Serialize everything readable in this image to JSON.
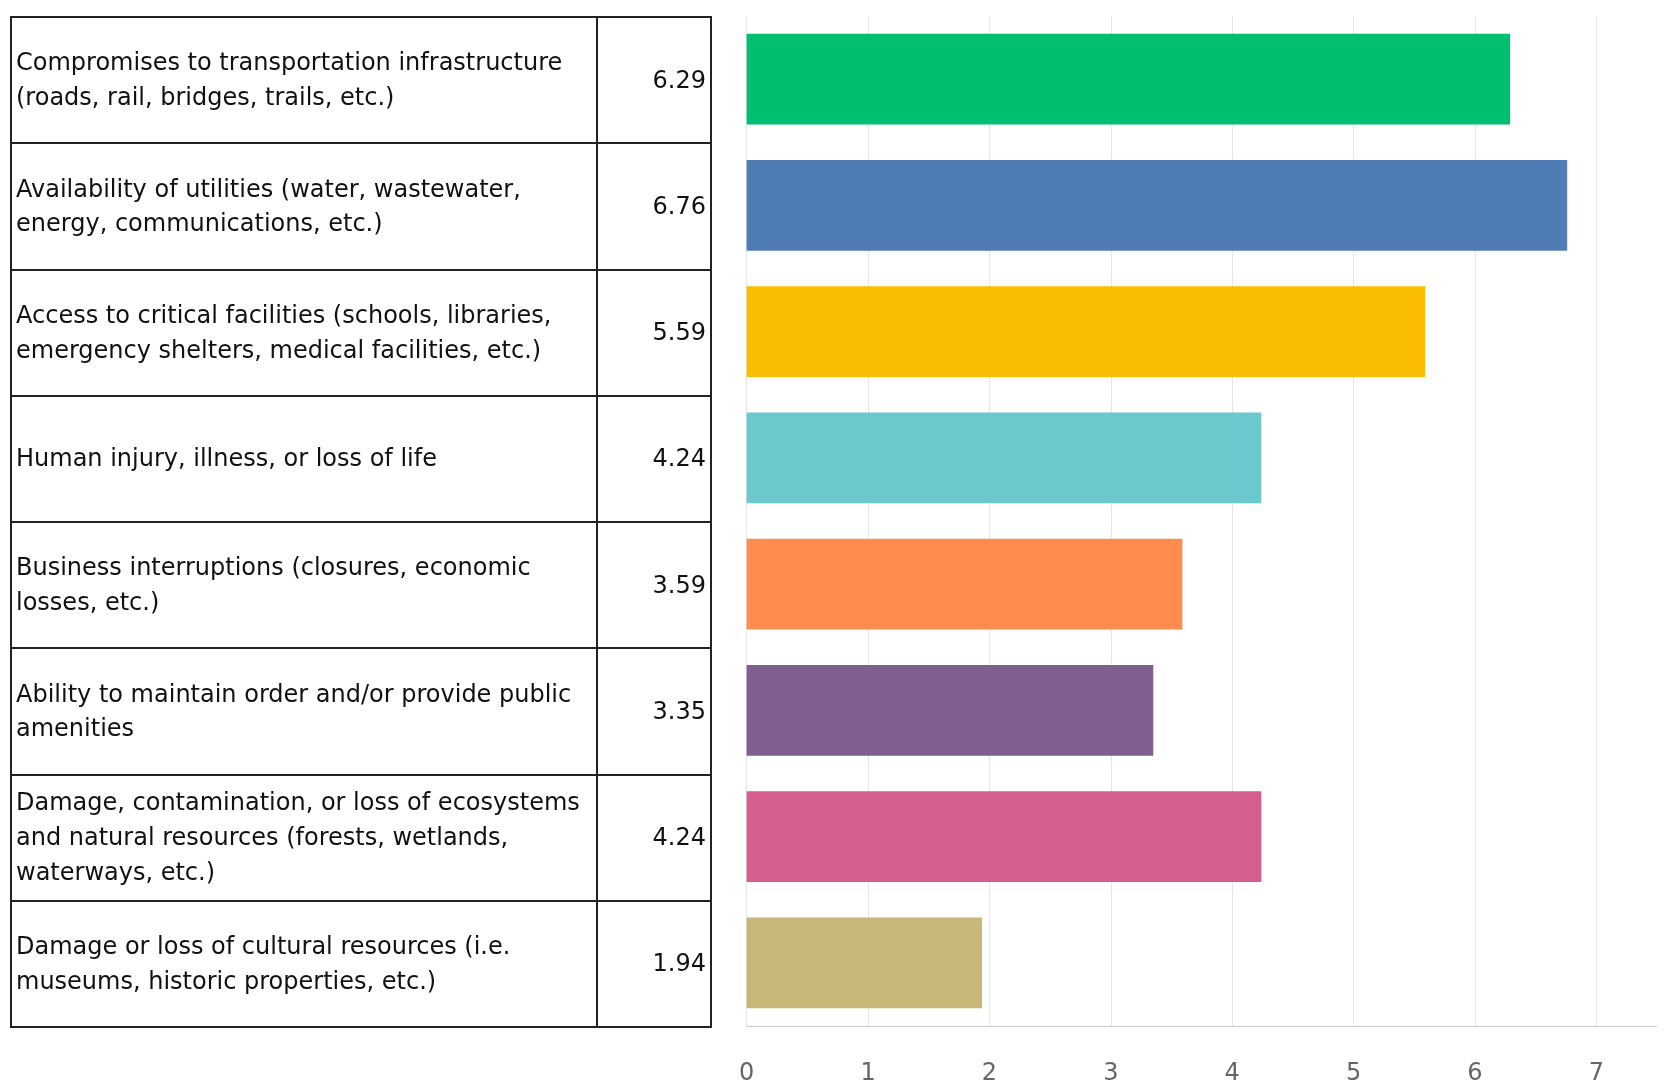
{
  "chart_data": {
    "type": "bar",
    "orientation": "horizontal",
    "categories": [
      "Compromises to transportation infrastructure (roads, rail, bridges, trails, etc.)",
      "Availability of utilities (water, wastewater, energy, communications, etc.)",
      "Access to critical facilities (schools, libraries, emergency shelters, medical facilities, etc.)",
      "Human injury, illness, or loss of life",
      "Business interruptions (closures, economic losses, etc.)",
      "Ability to maintain order and/or provide public amenities",
      "Damage, contamination, or loss of ecosystems and natural resources (forests, wetlands, waterways, etc.)",
      "Damage or loss of cultural resources (i.e. museums, historic properties, etc.)"
    ],
    "values": [
      6.29,
      6.76,
      5.59,
      4.24,
      3.59,
      3.35,
      4.24,
      1.94
    ],
    "colors": [
      "#00bf6f",
      "#507cb6",
      "#f9be00",
      "#6bc8cd",
      "#ff8b4f",
      "#7f5f8f",
      "#d55e8e",
      "#c7b879"
    ],
    "xlim": [
      0,
      7.5
    ],
    "xticks": [
      0,
      1,
      2,
      3,
      4,
      5,
      6,
      7
    ],
    "grid": "x",
    "data_labels": true,
    "tick_labels": "x"
  }
}
